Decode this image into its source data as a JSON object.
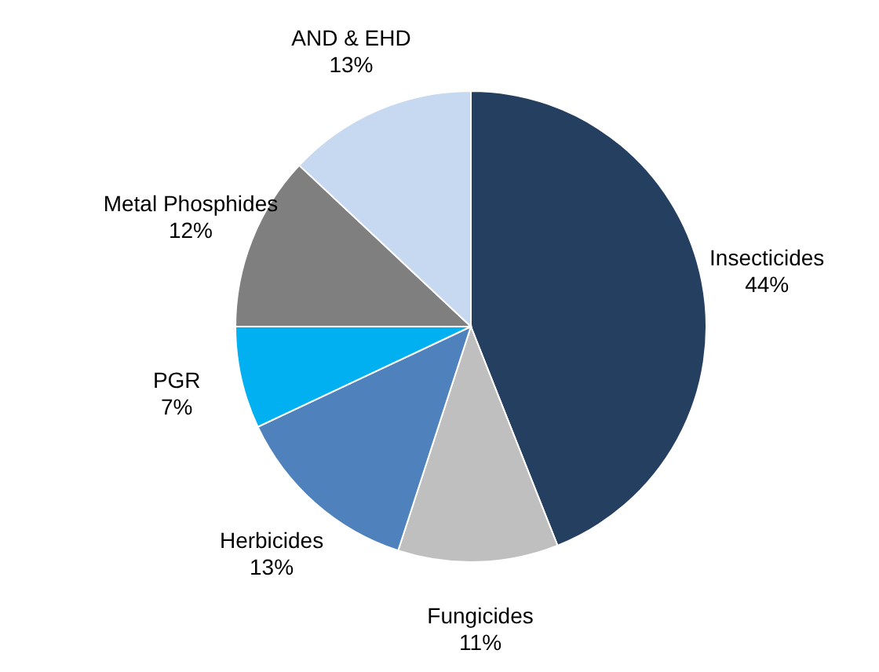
{
  "chart_data": {
    "type": "pie",
    "categories": [
      "Insecticides",
      "Fungicides",
      "Herbicides",
      "PGR",
      "Metal Phosphides",
      "AND & EHD"
    ],
    "values": [
      44,
      11,
      13,
      7,
      12,
      13
    ],
    "value_labels": [
      "44%",
      "11%",
      "13%",
      "7%",
      "12%",
      "13%"
    ],
    "colors": [
      "#243f60",
      "#bfbfbf",
      "#4f81bd",
      "#00b0f0",
      "#7f7f7f",
      "#c6d9f0"
    ]
  }
}
